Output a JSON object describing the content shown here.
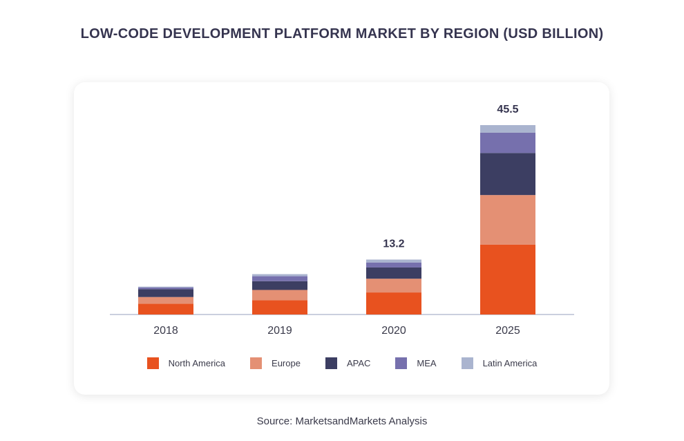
{
  "title": "LOW-CODE DEVELOPMENT PLATFORM MARKET BY REGION (USD BILLION)",
  "source": "Source: MarketsandMarkets Analysis",
  "chart_data": {
    "type": "bar",
    "stacked": true,
    "categories": [
      "2018",
      "2019",
      "2020",
      "2025"
    ],
    "series": [
      {
        "name": "North America",
        "color": "#e8521f",
        "values": [
          2.6,
          3.4,
          5.3,
          16.8
        ]
      },
      {
        "name": "Europe",
        "color": "#e49074",
        "values": [
          1.6,
          2.5,
          3.3,
          11.9
        ]
      },
      {
        "name": "APAC",
        "color": "#3c3e62",
        "values": [
          1.9,
          2.1,
          2.7,
          10.1
        ]
      },
      {
        "name": "MEA",
        "color": "#7670ad",
        "values": [
          0.4,
          1.2,
          1.2,
          4.9
        ]
      },
      {
        "name": "Latin America",
        "color": "#aab4cf",
        "values": [
          0.2,
          0.5,
          0.7,
          1.8
        ]
      }
    ],
    "totals_labeled": [
      {
        "category": "2020",
        "label": "13.2"
      },
      {
        "category": "2025",
        "label": "45.5"
      }
    ],
    "ylim": [
      0,
      45.5
    ],
    "grid": false,
    "legend_position": "bottom"
  }
}
